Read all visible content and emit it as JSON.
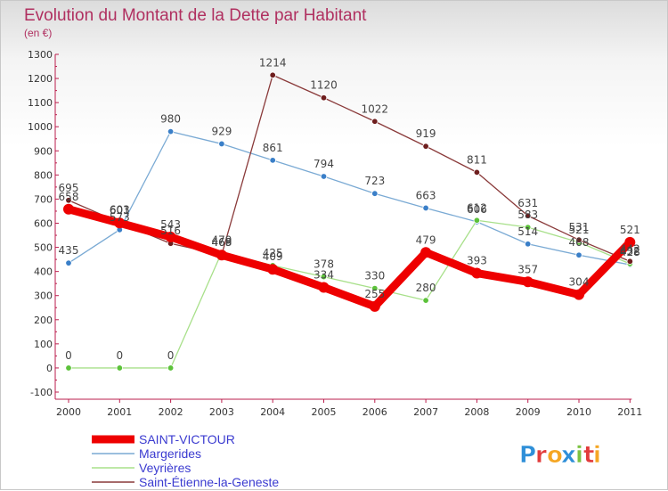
{
  "header": {
    "title": "Evolution du Montant de la Dette par Habitant",
    "subtitle": "(en €)"
  },
  "brand": {
    "letters": [
      "P",
      "r",
      "o",
      "x",
      "i",
      "t",
      "i"
    ],
    "colors": [
      "#2f8fd8",
      "#e23b3b",
      "#f5a623",
      "#2f8fd8",
      "#7cc242",
      "#e23b3b",
      "#f5a623"
    ]
  },
  "chart_data": {
    "type": "line",
    "title": "Evolution du Montant de la Dette par Habitant",
    "subtitle": "(en €)",
    "xlabel": "",
    "ylabel": "",
    "x": [
      "2000",
      "2001",
      "2002",
      "2003",
      "2004",
      "2005",
      "2006",
      "2007",
      "2008",
      "2009",
      "2010",
      "2011"
    ],
    "ylim": [
      -100,
      1300
    ],
    "yticks": [
      -100,
      0,
      100,
      200,
      300,
      400,
      500,
      600,
      700,
      800,
      900,
      1000,
      1100,
      1200,
      1300
    ],
    "grid": false,
    "legend": "bottom-left",
    "series": [
      {
        "name": "Margerides",
        "color": "#7aaad4",
        "marker": "#3a7fc8",
        "values": [
          435,
          573,
          980,
          929,
          861,
          794,
          723,
          663,
          606,
          514,
          468,
          428
        ]
      },
      {
        "name": "Veyrières",
        "color": "#a8e08a",
        "marker": "#5cc23a",
        "values": [
          0,
          0,
          0,
          479,
          425,
          378,
          330,
          280,
          612,
          583,
          521,
          432
        ]
      },
      {
        "name": "Saint-Étienne-la-Geneste",
        "color": "#8a3a3a",
        "marker": "#6e1e1e",
        "values": [
          695,
          603,
          516,
          469,
          1214,
          1120,
          1022,
          919,
          811,
          631,
          531,
          442
        ]
      },
      {
        "name": "SAINT-VICTOUR",
        "color": "#ee0000",
        "marker": "#ee0000",
        "values": [
          658,
          601,
          543,
          468,
          409,
          334,
          255,
          479,
          393,
          357,
          304,
          521
        ]
      }
    ],
    "legend_order": [
      "SAINT-VICTOUR",
      "Margerides",
      "Veyrières",
      "Saint-Étienne-la-Geneste"
    ]
  }
}
